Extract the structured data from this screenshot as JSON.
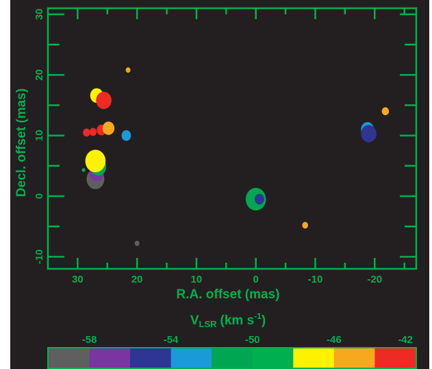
{
  "chart_data": {
    "type": "scatter",
    "xlabel": "R.A. offset (mas)",
    "ylabel": "Decl. offset (mas)",
    "xlim": [
      35,
      -27
    ],
    "ylim": [
      -12,
      31
    ],
    "xticks": [
      30,
      20,
      10,
      0,
      -10,
      -20
    ],
    "yticks": [
      -10,
      0,
      10,
      20,
      30
    ],
    "background": "#231f20",
    "axis_color": "#00b050",
    "grid": false,
    "colorbar": {
      "title_main": "V",
      "title_sub": "LSR",
      "title_units": "(km s",
      "title_sup": "-1",
      "title_close": ")",
      "tick_labels": [
        "-58",
        "-54",
        "-50",
        "-46",
        "-42"
      ],
      "tick_values": [
        -58,
        -54,
        -50,
        -46,
        -42
      ],
      "range": [
        -60,
        -42
      ],
      "colors": [
        "#5f5f5f",
        "#7a35a0",
        "#2e3592",
        "#1a9ad7",
        "#00a651",
        "#00b050",
        "#fff200",
        "#f7a81e",
        "#ee2a24"
      ]
    },
    "spots": [
      {
        "x": 0.0,
        "y": -0.5,
        "v": -51,
        "size": 1.7
      },
      {
        "x": -0.6,
        "y": -0.5,
        "v": -55,
        "size": 0.8
      },
      {
        "x": 27.0,
        "y": 2.8,
        "v": -59,
        "size": 1.5
      },
      {
        "x": 26.8,
        "y": 3.8,
        "v": -57,
        "size": 1.2
      },
      {
        "x": 26.5,
        "y": 4.8,
        "v": -51,
        "size": 1.3
      },
      {
        "x": 27.0,
        "y": 5.8,
        "v": -47,
        "size": 1.7
      },
      {
        "x": 29.0,
        "y": 4.3,
        "v": -51,
        "size": 0.3
      },
      {
        "x": 28.5,
        "y": 10.5,
        "v": -43,
        "size": 0.6
      },
      {
        "x": 27.4,
        "y": 10.6,
        "v": -43,
        "size": 0.6
      },
      {
        "x": 26.0,
        "y": 10.9,
        "v": -43,
        "size": 0.8
      },
      {
        "x": 24.8,
        "y": 11.2,
        "v": -45,
        "size": 1.0
      },
      {
        "x": 21.8,
        "y": 10.0,
        "v": -53,
        "size": 0.8
      },
      {
        "x": 26.8,
        "y": 16.6,
        "v": -47,
        "size": 1.1
      },
      {
        "x": 25.6,
        "y": 15.8,
        "v": -43,
        "size": 1.3
      },
      {
        "x": 21.5,
        "y": 20.8,
        "v": -45,
        "size": 0.4
      },
      {
        "x": 20.0,
        "y": -7.8,
        "v": -59,
        "size": 0.4
      },
      {
        "x": -8.3,
        "y": -4.8,
        "v": -45,
        "size": 0.5
      },
      {
        "x": -18.8,
        "y": 11.0,
        "v": -53,
        "size": 1.1
      },
      {
        "x": -19.0,
        "y": 10.3,
        "v": -55,
        "size": 1.3
      },
      {
        "x": -21.8,
        "y": 14.0,
        "v": -45,
        "size": 0.6
      }
    ]
  }
}
